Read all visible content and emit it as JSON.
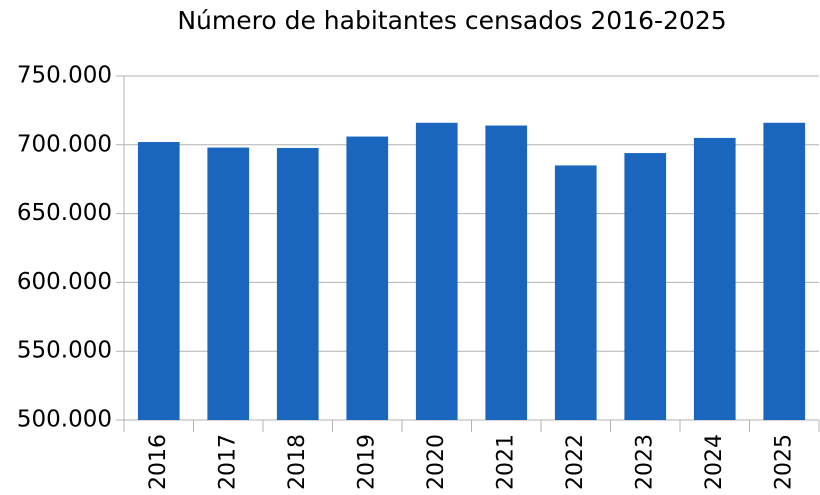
{
  "chart_data": {
    "type": "bar",
    "title": "Número de habitantes censados 2016-2025",
    "categories": [
      "2016",
      "2017",
      "2018",
      "2019",
      "2020",
      "2021",
      "2022",
      "2023",
      "2024",
      "2025"
    ],
    "values": [
      702000,
      698000,
      697700,
      706000,
      716000,
      714000,
      685000,
      694000,
      705000,
      716000
    ],
    "color": "#1a66bf",
    "ylim": [
      500000,
      750000
    ],
    "yticks": [
      {
        "value": 500000,
        "label": "500.000"
      },
      {
        "value": 550000,
        "label": "550.000"
      },
      {
        "value": 600000,
        "label": "600.000"
      },
      {
        "value": 650000,
        "label": "650.000"
      },
      {
        "value": 700000,
        "label": "700.000"
      },
      {
        "value": 750000,
        "label": "750.000"
      }
    ],
    "grid": true
  }
}
